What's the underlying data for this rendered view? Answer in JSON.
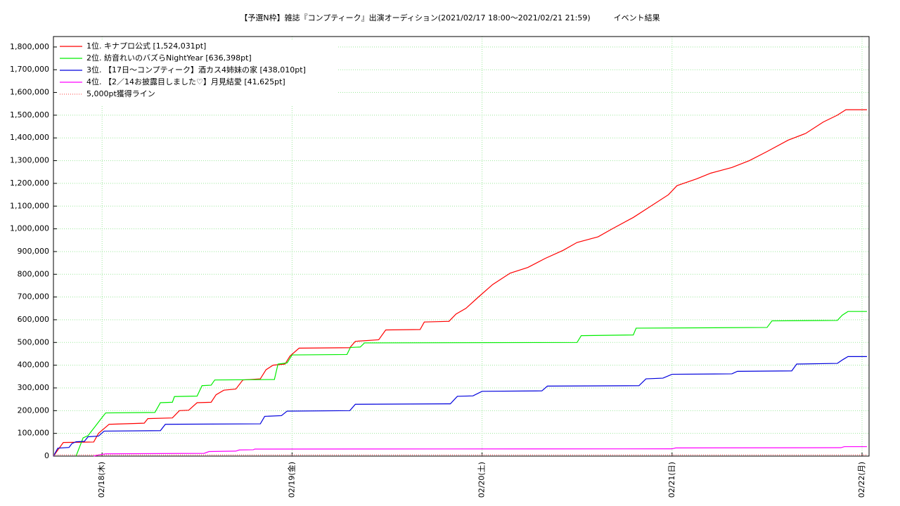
{
  "chart_data": {
    "type": "line",
    "title": "【予選N枠】雑誌『コンプティーク』出演オーディション(2021/02/17 18:00〜2021/02/21 21:59)　　　イベント結果",
    "xlim": [
      17.744,
      22.037
    ],
    "xticks": [
      {
        "value": 18,
        "label": "02/18(木)"
      },
      {
        "value": 19,
        "label": "02/19(金)"
      },
      {
        "value": 20,
        "label": "02/20(土)"
      },
      {
        "value": 21,
        "label": "02/21(日)"
      },
      {
        "value": 22,
        "label": "02/22(月)"
      }
    ],
    "ylim": [
      0,
      1846000
    ],
    "yticks": [
      0,
      {
        "value": 100000,
        "label": "100,000"
      },
      {
        "value": 200000,
        "label": "200,000"
      },
      {
        "value": 300000,
        "label": "300,000"
      },
      {
        "value": 400000,
        "label": "400,000"
      },
      {
        "value": 500000,
        "label": "500,000"
      },
      {
        "value": 600000,
        "label": "600,000"
      },
      {
        "value": 700000,
        "label": "700,000"
      },
      {
        "value": 800000,
        "label": "800,000"
      },
      {
        "value": 900000,
        "label": "900,000"
      },
      {
        "value": 1000000,
        "label": "1,000,000"
      },
      {
        "value": 1100000,
        "label": "1,100,000"
      },
      {
        "value": 1200000,
        "label": "1,200,000"
      },
      {
        "value": 1300000,
        "label": "1,300,000"
      },
      {
        "value": 1400000,
        "label": "1,400,000"
      },
      {
        "value": 1500000,
        "label": "1,500,000"
      },
      {
        "value": 1600000,
        "label": "1,600,000"
      },
      {
        "value": 1700000,
        "label": "1,700,000"
      },
      {
        "value": 1800000,
        "label": "1,800,000"
      }
    ],
    "grid": true,
    "legend": "upper left",
    "series": [
      {
        "name": "1位. キナプロ公式 [1,524,031pt]",
        "color": "#ff0000",
        "x": [
          17.744,
          17.796,
          17.956,
          17.981,
          18.037,
          18.222,
          18.241,
          18.37,
          18.407,
          18.456,
          18.5,
          18.574,
          18.6,
          18.641,
          18.704,
          18.741,
          18.833,
          18.863,
          18.9,
          18.963,
          18.989,
          19.037,
          19.304,
          19.333,
          19.456,
          19.493,
          19.674,
          19.696,
          19.826,
          19.863,
          19.915,
          19.981,
          20.056,
          20.148,
          20.241,
          20.333,
          20.426,
          20.5,
          20.611,
          20.685,
          20.796,
          20.87,
          20.981,
          21.026,
          21.13,
          21.204,
          21.315,
          21.407,
          21.5,
          21.611,
          21.704,
          21.796,
          21.87,
          21.915,
          22.026
        ],
        "values": [
          0,
          60000,
          62000,
          100000,
          140000,
          145000,
          165000,
          168000,
          200000,
          202000,
          235000,
          237000,
          270000,
          290000,
          295000,
          335000,
          340000,
          380000,
          400000,
          405000,
          440000,
          475000,
          477000,
          505000,
          512000,
          555000,
          557000,
          590000,
          593000,
          625000,
          650000,
          700000,
          755000,
          805000,
          830000,
          870000,
          905000,
          940000,
          965000,
          1000000,
          1050000,
          1090000,
          1150000,
          1190000,
          1220000,
          1245000,
          1270000,
          1300000,
          1340000,
          1390000,
          1420000,
          1470000,
          1500000,
          1524031,
          1524031
        ]
      },
      {
        "name": "2位. 紡音れいのバズらNightYear [636,398pt]",
        "color": "#00ee00",
        "x": [
          17.863,
          17.9,
          17.926,
          17.963,
          18.0,
          18.019,
          18.278,
          18.307,
          18.37,
          18.381,
          18.5,
          18.526,
          18.574,
          18.593,
          18.907,
          18.926,
          18.974,
          19.0,
          19.289,
          19.307,
          19.359,
          19.381,
          20.5,
          20.522,
          20.796,
          20.811,
          21.5,
          21.526,
          21.87,
          21.896,
          21.926,
          22.026
        ],
        "values": [
          0,
          80000,
          90000,
          130000,
          170000,
          190000,
          192000,
          235000,
          237000,
          262000,
          264000,
          310000,
          312000,
          335000,
          337000,
          405000,
          410000,
          445000,
          447000,
          478000,
          480000,
          498000,
          500000,
          530000,
          533000,
          563000,
          566000,
          595000,
          597000,
          620000,
          636398,
          636398
        ]
      },
      {
        "name": "3位. 【17日〜コンプティーク】酒カス4姉妹の家 [438,010pt]",
        "color": "#0000dd",
        "x": [
          17.744,
          17.767,
          17.826,
          17.841,
          17.863,
          17.907,
          17.926,
          17.981,
          18.011,
          18.307,
          18.333,
          18.833,
          18.856,
          18.944,
          18.974,
          19.304,
          19.333,
          19.833,
          19.87,
          19.952,
          20.0,
          20.315,
          20.344,
          20.826,
          20.863,
          20.952,
          21.0,
          21.315,
          21.344,
          21.63,
          21.656,
          21.87,
          21.9,
          21.926,
          22.026
        ],
        "values": [
          0,
          35000,
          38000,
          55000,
          63000,
          65000,
          85000,
          88000,
          110000,
          112000,
          140000,
          142000,
          175000,
          178000,
          198000,
          200000,
          228000,
          230000,
          263000,
          265000,
          285000,
          287000,
          308000,
          310000,
          340000,
          343000,
          360000,
          362000,
          373000,
          375000,
          405000,
          408000,
          425000,
          438010,
          438010
        ]
      },
      {
        "name": "4位. 【2／14お披露目しました♡】月見結愛 [41,625pt]",
        "color": "#ff00ff",
        "x": [
          17.956,
          17.981,
          18.019,
          18.537,
          18.563,
          18.704,
          18.722,
          18.796,
          18.804,
          21.0,
          21.019,
          21.889,
          21.907,
          22.026
        ],
        "values": [
          0,
          5000,
          10000,
          12000,
          20000,
          22000,
          27000,
          28000,
          31000,
          32000,
          36000,
          37000,
          41625,
          41625
        ]
      },
      {
        "name": "5,000pt獲得ライン",
        "color": "#ff6666",
        "dash": "dotted",
        "x": [
          17.744,
          22.026
        ],
        "values": [
          5000,
          5000
        ]
      }
    ]
  }
}
